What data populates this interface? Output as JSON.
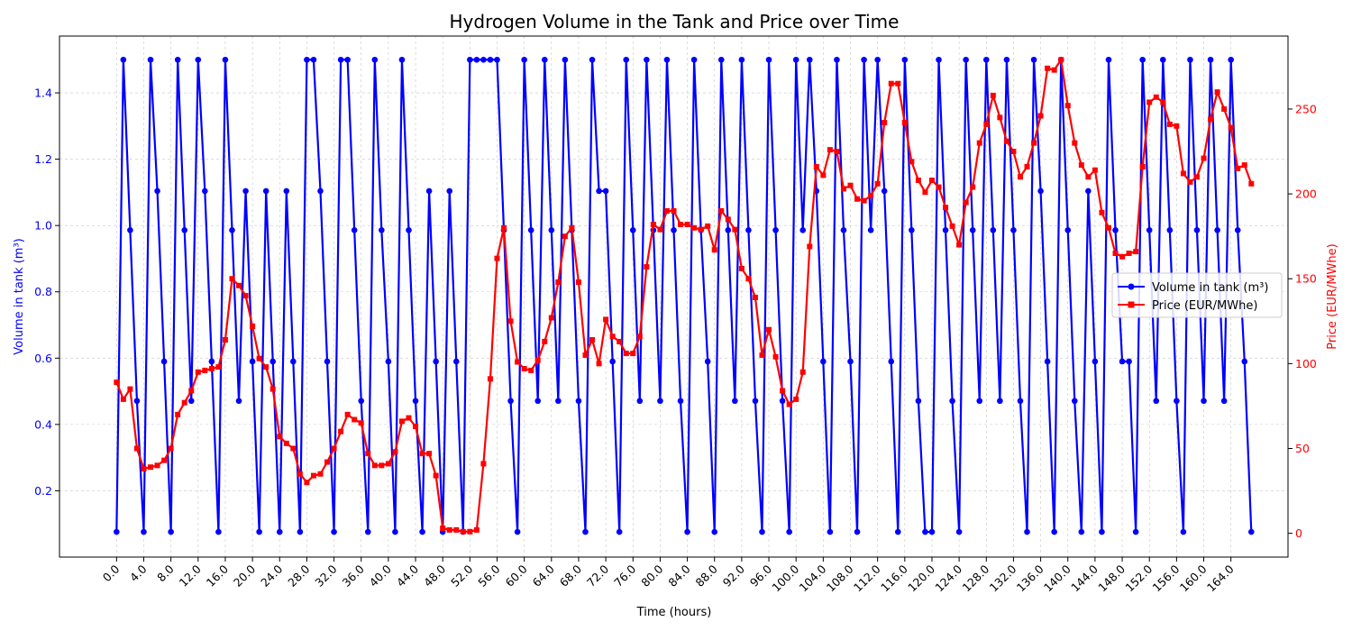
{
  "chart_data": {
    "type": "line",
    "title": "Hydrogen Volume in the Tank and Price over Time",
    "xlabel": "Time (hours)",
    "ylabel_left": "Volume in tank (m³)",
    "ylabel_right": "Price (EUR/MWhe)",
    "x_start": 0,
    "x_step": 1,
    "x_ticks": [
      0,
      4,
      8,
      12,
      16,
      20,
      24,
      28,
      32,
      36,
      40,
      44,
      48,
      52,
      56,
      60,
      64,
      68,
      72,
      76,
      80,
      84,
      88,
      92,
      96,
      100,
      104,
      108,
      112,
      116,
      120,
      124,
      128,
      132,
      136,
      140,
      144,
      148,
      152,
      156,
      160,
      164
    ],
    "x_tick_labels": [
      "0.0",
      "4.0",
      "8.0",
      "12.0",
      "16.0",
      "20.0",
      "24.0",
      "28.0",
      "32.0",
      "36.0",
      "40.0",
      "44.0",
      "48.0",
      "52.0",
      "56.0",
      "60.0",
      "64.0",
      "68.0",
      "72.0",
      "76.0",
      "80.0",
      "84.0",
      "88.0",
      "92.0",
      "96.0",
      "100.0",
      "104.0",
      "108.0",
      "112.0",
      "116.0",
      "120.0",
      "124.0",
      "128.0",
      "132.0",
      "136.0",
      "140.0",
      "144.0",
      "148.0",
      "152.0",
      "156.0",
      "160.0",
      "164.0"
    ],
    "xlim": [
      -8.4,
      172.4
    ],
    "ylim_left": [
      0.0,
      1.5714
    ],
    "ylim_right": [
      -14,
      293
    ],
    "left_ticks": [
      0.2,
      0.4,
      0.6,
      0.8,
      1.0,
      1.2,
      1.4
    ],
    "left_tick_labels": [
      "0.2",
      "0.4",
      "0.6",
      "0.8",
      "1.0",
      "1.2",
      "1.4"
    ],
    "right_ticks": [
      0,
      50,
      100,
      150,
      200,
      250
    ],
    "right_tick_labels": [
      "0",
      "50",
      "100",
      "150",
      "200",
      "250"
    ],
    "grid": true,
    "legend_position": "center-right",
    "series": [
      {
        "name": "Volume in tank (m³)",
        "axis": "left",
        "color": "#0000ff",
        "marker": "circle",
        "values": [
          0.076,
          1.5,
          0.986,
          0.471,
          0.076,
          1.5,
          1.104,
          0.59,
          0.076,
          1.5,
          0.986,
          0.471,
          1.5,
          1.104,
          0.59,
          0.076,
          1.5,
          0.986,
          0.471,
          1.104,
          0.59,
          0.076,
          1.104,
          0.59,
          0.076,
          1.104,
          0.59,
          0.076,
          1.5,
          1.5,
          1.104,
          0.59,
          0.076,
          1.5,
          1.5,
          0.986,
          0.471,
          0.076,
          1.5,
          0.986,
          0.59,
          0.076,
          1.5,
          0.986,
          0.471,
          0.076,
          1.104,
          0.59,
          0.076,
          1.104,
          0.59,
          0.076,
          1.5,
          1.5,
          1.5,
          1.5,
          1.5,
          0.986,
          0.471,
          0.076,
          1.5,
          0.986,
          0.471,
          1.5,
          0.986,
          0.471,
          1.5,
          0.986,
          0.471,
          0.076,
          1.5,
          1.104,
          1.104,
          0.59,
          0.076,
          1.5,
          0.986,
          0.471,
          1.5,
          0.986,
          0.471,
          1.5,
          0.986,
          0.471,
          0.076,
          1.5,
          0.986,
          0.59,
          0.076,
          1.5,
          0.986,
          0.471,
          1.5,
          0.986,
          0.471,
          0.076,
          1.5,
          0.986,
          0.471,
          0.076,
          1.5,
          0.986,
          1.5,
          1.104,
          0.59,
          0.076,
          1.5,
          0.986,
          0.59,
          0.076,
          1.5,
          0.986,
          1.5,
          1.104,
          0.59,
          0.076,
          1.5,
          0.986,
          0.471,
          0.076,
          0.076,
          1.5,
          0.986,
          0.471,
          0.076,
          1.5,
          0.986,
          0.471,
          1.5,
          0.986,
          0.471,
          1.5,
          0.986,
          0.471,
          0.076,
          1.5,
          1.104,
          0.59,
          0.076,
          1.5,
          0.986,
          0.471,
          0.076,
          1.104,
          0.59,
          0.076,
          1.5,
          0.986,
          0.59,
          0.59,
          0.076,
          1.5,
          0.986,
          0.471,
          1.5,
          0.986,
          0.471,
          0.076,
          1.5,
          0.986,
          0.471,
          1.5,
          0.986,
          0.471,
          1.5,
          0.986,
          0.59,
          0.076
        ]
      },
      {
        "name": "Price (EUR/MWhe)",
        "axis": "right",
        "color": "#ff0000",
        "marker": "square",
        "values": [
          89,
          79,
          85,
          50,
          38,
          39,
          40,
          43,
          50,
          70,
          77,
          84,
          95,
          96,
          97,
          98,
          114,
          150,
          146,
          140,
          122,
          103,
          98,
          85,
          57,
          53,
          50,
          35,
          30,
          34,
          35,
          42,
          50,
          60,
          70,
          67,
          65,
          47,
          40,
          40,
          41,
          48,
          66,
          68,
          63,
          47,
          47,
          34,
          3,
          2,
          2,
          1,
          1,
          2,
          41,
          91,
          162,
          180,
          125,
          101,
          97,
          96,
          102,
          113,
          127,
          148,
          175,
          180,
          148,
          105,
          114,
          100,
          126,
          116,
          113,
          106,
          106,
          116,
          157,
          182,
          179,
          190,
          190,
          182,
          182,
          180,
          179,
          181,
          167,
          190,
          185,
          179,
          156,
          150,
          139,
          105,
          120,
          104,
          84,
          76,
          79,
          95,
          169,
          216,
          211,
          226,
          225,
          203,
          205,
          197,
          196,
          199,
          206,
          242,
          265,
          265,
          242,
          219,
          208,
          201,
          208,
          204,
          192,
          181,
          170,
          195,
          204,
          230,
          241,
          258,
          245,
          231,
          225,
          210,
          216,
          230,
          246,
          274,
          273,
          279,
          252,
          230,
          217,
          210,
          214,
          189,
          180,
          165,
          163,
          165,
          166,
          216,
          254,
          257,
          254,
          241,
          240,
          212,
          207,
          210,
          221,
          244,
          260,
          250,
          239,
          215,
          217,
          206
        ]
      }
    ]
  }
}
